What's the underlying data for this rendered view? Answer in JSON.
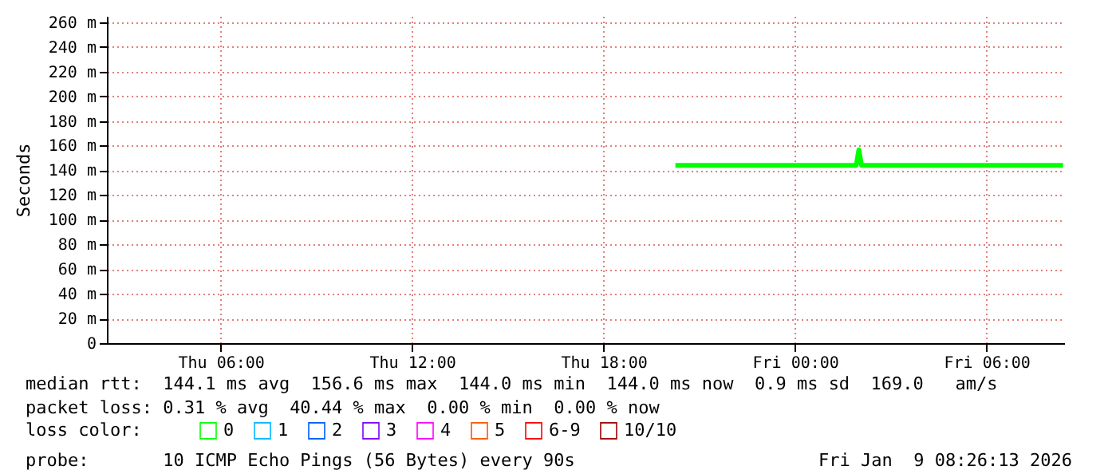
{
  "chart_data": {
    "type": "line",
    "ylabel": "Seconds",
    "legend_title": "loss color:",
    "x": [
      "2026-01-08T20:15",
      "2026-01-08T23:00",
      "2026-01-09T01:55",
      "2026-01-09T02:00",
      "2026-01-09T02:05",
      "2026-01-09T05:00",
      "2026-01-09T08:24"
    ],
    "series": [
      {
        "name": "0",
        "color": "#00ff00",
        "values": [
          144,
          144,
          144,
          156.6,
          144,
          144,
          144
        ]
      },
      {
        "name": "1",
        "color": "#00b8ff",
        "values": [
          null,
          null,
          null,
          null,
          null,
          null,
          null
        ]
      },
      {
        "name": "2",
        "color": "#0059ff",
        "values": [
          null,
          null,
          null,
          null,
          null,
          null,
          null
        ]
      },
      {
        "name": "3",
        "color": "#7e00ff",
        "values": [
          null,
          null,
          null,
          null,
          null,
          null,
          null
        ]
      },
      {
        "name": "4",
        "color": "#ff00ff",
        "values": [
          null,
          null,
          null,
          null,
          null,
          null,
          null
        ]
      },
      {
        "name": "5",
        "color": "#ff5500",
        "values": [
          null,
          null,
          null,
          null,
          null,
          null,
          null
        ]
      },
      {
        "name": "6-9",
        "color": "#ff0000",
        "values": [
          null,
          null,
          null,
          null,
          null,
          null,
          null
        ]
      },
      {
        "name": "10/10",
        "color": "#a10000",
        "values": [
          null,
          null,
          null,
          null,
          null,
          null,
          null
        ]
      }
    ],
    "xlim": [
      "2026-01-08T02:26",
      "2026-01-09T08:26"
    ],
    "xticks": [
      {
        "value": "2026-01-08T06:00",
        "label": "Thu 06:00"
      },
      {
        "value": "2026-01-08T12:00",
        "label": "Thu 12:00"
      },
      {
        "value": "2026-01-08T18:00",
        "label": "Thu 18:00"
      },
      {
        "value": "2026-01-09T00:00",
        "label": "Fri 00:00"
      },
      {
        "value": "2026-01-09T06:00",
        "label": "Fri 06:00"
      }
    ],
    "ylim": [
      0,
      265
    ],
    "yticks": [
      0,
      {
        "value": 20,
        "label": "20 m"
      },
      {
        "value": 40,
        "label": "40 m"
      },
      {
        "value": 60,
        "label": "60 m"
      },
      {
        "value": 80,
        "label": "80 m"
      },
      {
        "value": 100,
        "label": "100 m"
      },
      {
        "value": 120,
        "label": "120 m"
      },
      {
        "value": 140,
        "label": "140 m"
      },
      {
        "value": 160,
        "label": "160 m"
      },
      {
        "value": 180,
        "label": "180 m"
      },
      {
        "value": 200,
        "label": "200 m"
      },
      {
        "value": 220,
        "label": "220 m"
      },
      {
        "value": 240,
        "label": "240 m"
      },
      {
        "value": 260,
        "label": "260 m"
      }
    ],
    "grid": true,
    "legend": "bottom",
    "annotations": [
      "median rtt:  144.1 ms avg  156.6 ms max  144.0 ms min  144.0 ms now  0.9 ms sd  169.0   am/s",
      "packet loss: 0.31 % avg  40.44 % max  0.00 % min  0.00 % now",
      "probe:       10 ICMP Echo Pings (56 Bytes) every 90s",
      "Fri Jan  9 08:26:13 2026"
    ]
  }
}
